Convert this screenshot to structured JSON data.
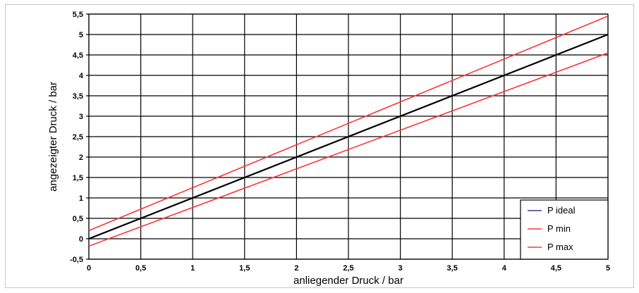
{
  "chart_data": {
    "type": "line",
    "xlabel": "anliegender Druck / bar",
    "ylabel": "angezeigter Druck / bar",
    "xlim": [
      0,
      5
    ],
    "ylim": [
      -0.5,
      5.5
    ],
    "x_ticks": [
      "0",
      "0,5",
      "1",
      "1,5",
      "2",
      "2,5",
      "3",
      "3,5",
      "4",
      "4,5",
      "5"
    ],
    "y_ticks": [
      "-0,5",
      "0",
      "0,5",
      "1",
      "1,5",
      "2",
      "2,5",
      "3",
      "3,5",
      "4",
      "4,5",
      "5",
      "5,5"
    ],
    "grid": true,
    "legend_position": "bottom-right",
    "series": [
      {
        "name": "P ideal",
        "color": "#3a3aa0",
        "line_color": "#000000",
        "x": [
          0,
          5
        ],
        "y": [
          0,
          5
        ]
      },
      {
        "name": "P min",
        "color": "#ff3333",
        "line_color": "#ff3333",
        "x": [
          0,
          5
        ],
        "y": [
          -0.18,
          4.55
        ]
      },
      {
        "name": "P max",
        "color": "#ff3333",
        "line_color": "#ff3333",
        "x": [
          0,
          5
        ],
        "y": [
          0.2,
          5.45
        ]
      }
    ]
  }
}
